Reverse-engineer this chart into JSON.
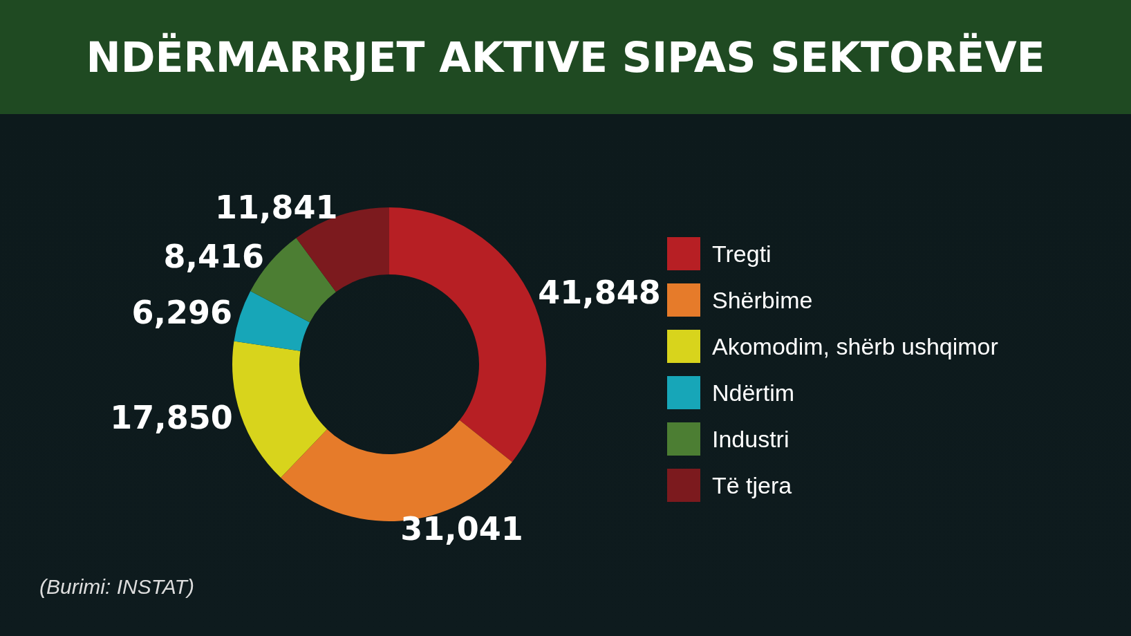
{
  "chart_data": {
    "type": "donut",
    "title": "NDËRMARRJET AKTIVE SIPAS SEKTORËVE",
    "categories": [
      "Tregti",
      "Shërbime",
      "Akomodim, shërb ushqimor",
      "Ndërtim",
      "Industri",
      "Të tjera"
    ],
    "values": [
      41848,
      31041,
      17850,
      6296,
      8416,
      11841
    ],
    "value_labels": [
      "41,848",
      "31,041",
      "17,850",
      "6,296",
      "8,416",
      "11,841"
    ],
    "colors": [
      "#b71f24",
      "#e67b2a",
      "#d8d41c",
      "#17a6b8",
      "#4c7e33",
      "#7c1a1e"
    ],
    "legend": "right",
    "annotations": [
      "(Burimi: INSTAT)"
    ]
  }
}
